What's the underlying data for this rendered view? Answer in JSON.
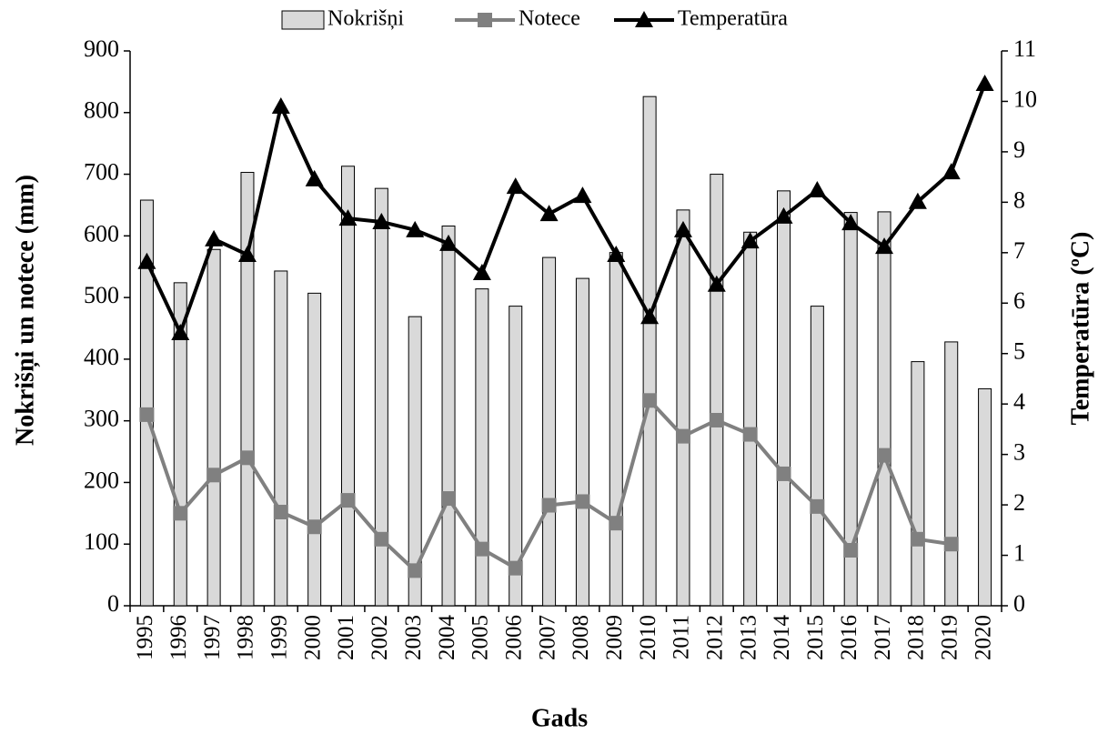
{
  "chart_data": {
    "type": "combo",
    "x_label": "Gads",
    "y_label": "Nokrišņi un notece  (mm)",
    "y2_label": "Temperatūra (ºC)",
    "categories": [
      "1995",
      "1996",
      "1997",
      "1998",
      "1999",
      "2000",
      "2001",
      "2002",
      "2003",
      "2004",
      "2005",
      "2006",
      "2007",
      "2008",
      "2009",
      "2010",
      "2011",
      "2012",
      "2013",
      "2014",
      "2015",
      "2016",
      "2017",
      "2018",
      "2019",
      "2020"
    ],
    "ylim": [
      0,
      900
    ],
    "yticks": [
      0,
      100,
      200,
      300,
      400,
      500,
      600,
      700,
      800,
      900
    ],
    "y2lim": [
      0,
      11
    ],
    "y2ticks": [
      0,
      1,
      2,
      3,
      4,
      5,
      6,
      7,
      8,
      9,
      10,
      11
    ],
    "legend": "top",
    "series": [
      {
        "name": "Nokrišņi",
        "type": "bar",
        "color": "#d9d9d9",
        "values": [
          658,
          524,
          578,
          703,
          543,
          507,
          713,
          677,
          469,
          616,
          514,
          486,
          565,
          531,
          573,
          826,
          642,
          700,
          606,
          673,
          486,
          638,
          639,
          396,
          428,
          352
        ]
      },
      {
        "name": "Notece",
        "type": "line",
        "marker": "square",
        "color": "#808080",
        "values": [
          310,
          150,
          212,
          240,
          152,
          128,
          171,
          108,
          57,
          174,
          92,
          61,
          163,
          169,
          134,
          333,
          275,
          301,
          278,
          214,
          161,
          90,
          244,
          108,
          100,
          null
        ]
      },
      {
        "name": "Temperatūra",
        "type": "line",
        "marker": "triangle",
        "color": "#000000",
        "axis": "y2",
        "values": [
          6.82,
          5.41,
          7.27,
          6.96,
          9.9,
          8.46,
          7.68,
          7.61,
          7.45,
          7.18,
          6.6,
          8.31,
          7.77,
          8.13,
          6.96,
          5.73,
          7.45,
          6.37,
          7.23,
          7.72,
          8.24,
          7.59,
          7.12,
          8.01,
          8.6,
          10.35
        ]
      }
    ]
  }
}
